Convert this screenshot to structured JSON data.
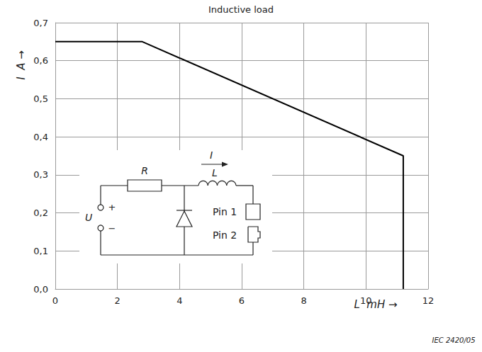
{
  "chart_data": {
    "type": "line",
    "title": "Inductive load",
    "x_label": "L  mH →",
    "y_label": "I  A →",
    "x": [
      0,
      2.8,
      11.2,
      11.2
    ],
    "values": [
      0.65,
      0.65,
      0.35,
      0
    ],
    "color": "#000000",
    "xlim": [
      0,
      12
    ],
    "xticks": [
      0,
      2,
      4,
      6,
      8,
      10,
      12
    ],
    "ylim": [
      0,
      0.7
    ],
    "yticks": [
      {
        "value": 0,
        "label": "0,0"
      },
      {
        "value": 0.1,
        "label": "0,1"
      },
      {
        "value": 0.2,
        "label": "0,2"
      },
      {
        "value": 0.3,
        "label": "0,3"
      },
      {
        "value": 0.4,
        "label": "0,4"
      },
      {
        "value": 0.5,
        "label": "0,5"
      },
      {
        "value": 0.6,
        "label": "0,6"
      },
      {
        "value": 0.7,
        "label": "0,7"
      }
    ],
    "grid": true,
    "annotations": [
      "R",
      "L",
      "I",
      "U",
      "+",
      "−",
      "Pin 1",
      "Pin 2",
      "IEC 2420/05"
    ]
  }
}
